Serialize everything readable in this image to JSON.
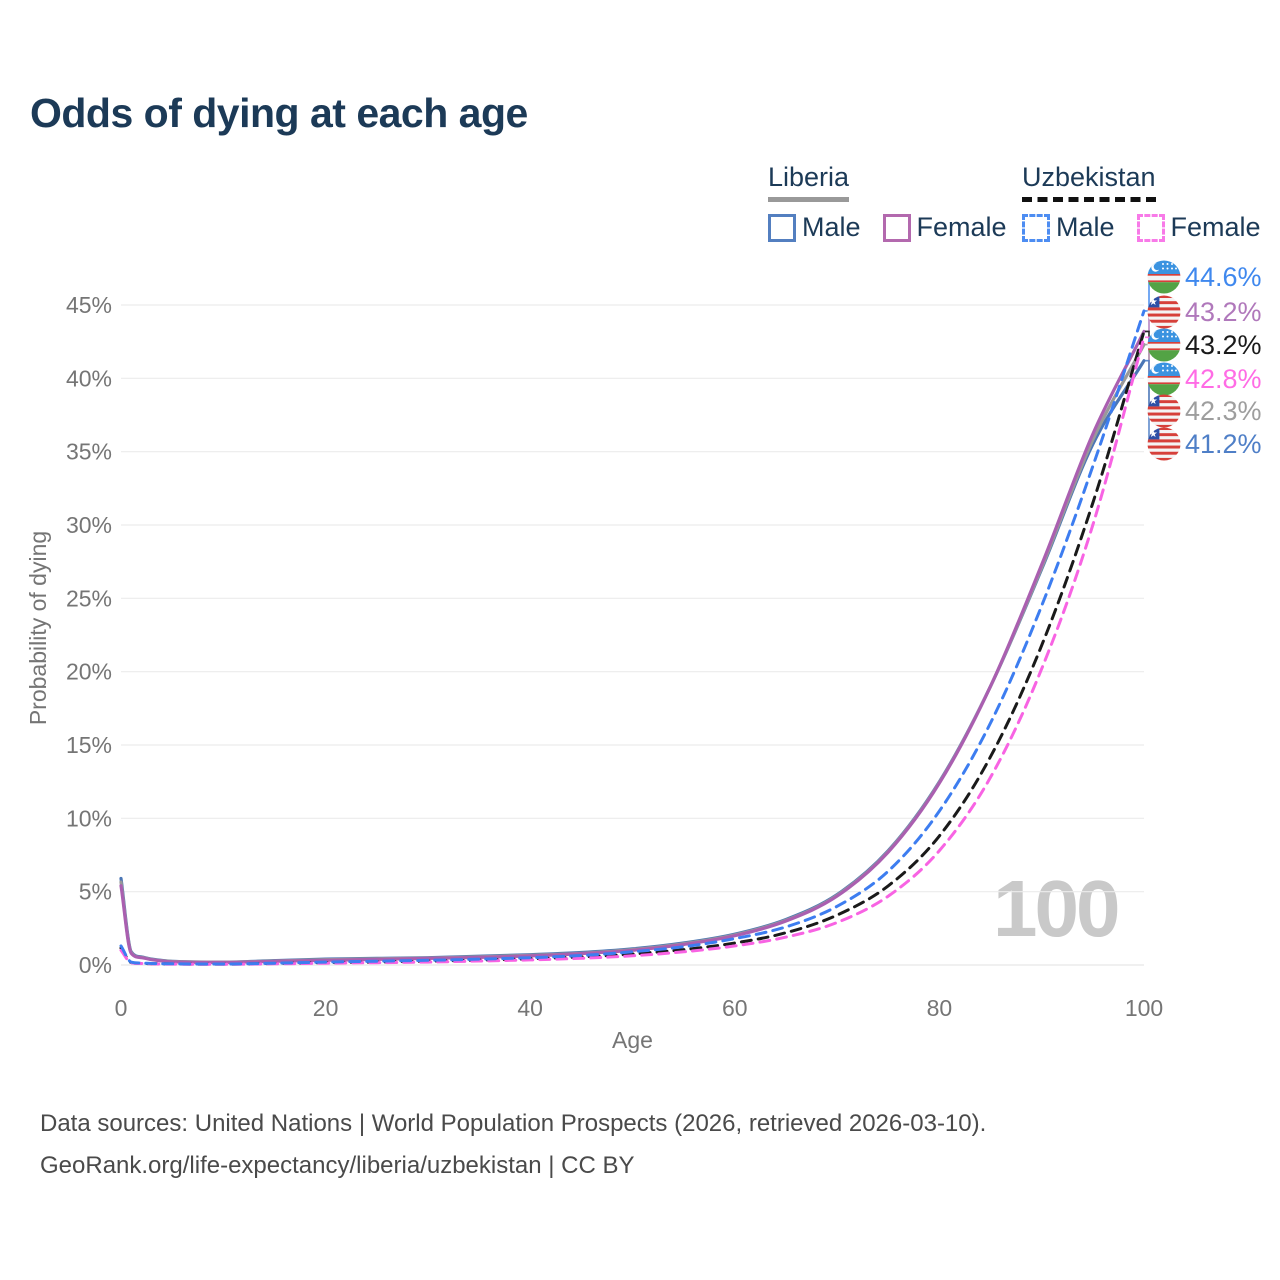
{
  "title": "Odds of dying at each age",
  "legend": {
    "groups": [
      {
        "country": "Liberia",
        "line_style": "solid",
        "underline_color": "#999999",
        "items": [
          {
            "label": "Male",
            "color": "#537fc0",
            "dashed": false
          },
          {
            "label": "Female",
            "color": "#b369ae",
            "dashed": false
          }
        ]
      },
      {
        "country": "Uzbekistan",
        "line_style": "dashed",
        "underline_color": "#111111",
        "items": [
          {
            "label": "Male",
            "color": "#4d8df2",
            "dashed": true
          },
          {
            "label": "Female",
            "color": "#f87ae8",
            "dashed": true
          }
        ]
      }
    ]
  },
  "chart_data": {
    "type": "line",
    "title": "Odds of dying at each age",
    "xlabel": "Age",
    "ylabel": "Probability of dying",
    "xlim": [
      0,
      100
    ],
    "ylim": [
      0,
      47
    ],
    "x_ticks": [
      0,
      20,
      40,
      60,
      80,
      100
    ],
    "y_ticks_percent": [
      0,
      5,
      10,
      15,
      20,
      25,
      30,
      35,
      40,
      45
    ],
    "grid": true,
    "legend_position": "top-right",
    "x": [
      0,
      1,
      2,
      3,
      5,
      10,
      15,
      20,
      25,
      30,
      35,
      40,
      45,
      50,
      55,
      60,
      65,
      70,
      75,
      80,
      85,
      90,
      95,
      100
    ],
    "series": [
      {
        "name": "Liberia Male",
        "country": "Liberia",
        "sex": "Male",
        "color": "#4b76b5",
        "dashed": false,
        "values": [
          5.9,
          0.9,
          0.55,
          0.4,
          0.25,
          0.2,
          0.3,
          0.4,
          0.45,
          0.5,
          0.6,
          0.7,
          0.85,
          1.1,
          1.5,
          2.1,
          3.1,
          4.8,
          7.8,
          12.5,
          19.0,
          27.0,
          35.5,
          41.2
        ],
        "end_value": 41.2,
        "end_label": "41.2%"
      },
      {
        "name": "Liberia Female",
        "country": "Liberia",
        "sex": "Female",
        "color": "#aa5fb0",
        "dashed": false,
        "values": [
          5.4,
          0.8,
          0.5,
          0.36,
          0.22,
          0.18,
          0.25,
          0.32,
          0.38,
          0.45,
          0.52,
          0.62,
          0.78,
          1.0,
          1.4,
          2.0,
          3.0,
          4.7,
          7.7,
          12.4,
          19.0,
          27.3,
          36.2,
          43.2
        ],
        "end_value": 43.2,
        "end_label": "43.2%"
      },
      {
        "name": "Liberia Both sexes",
        "country": "Liberia",
        "sex": "Both",
        "color": "#999999",
        "dashed": false,
        "values": [
          5.65,
          0.85,
          0.52,
          0.38,
          0.24,
          0.19,
          0.27,
          0.36,
          0.42,
          0.47,
          0.56,
          0.66,
          0.8,
          1.05,
          1.45,
          2.05,
          3.05,
          4.75,
          7.75,
          12.45,
          19.0,
          27.1,
          35.8,
          42.3
        ],
        "end_value": 42.3,
        "end_label": "42.3%"
      },
      {
        "name": "Uzbekistan Male",
        "country": "Uzbekistan",
        "sex": "Male",
        "color": "#3d7df0",
        "dashed": true,
        "values": [
          1.3,
          0.2,
          0.13,
          0.1,
          0.08,
          0.07,
          0.12,
          0.2,
          0.26,
          0.32,
          0.4,
          0.5,
          0.65,
          0.9,
          1.25,
          1.8,
          2.6,
          4.0,
          6.4,
          10.5,
          16.5,
          24.5,
          34.0,
          44.6
        ],
        "end_value": 44.6,
        "end_label": "44.6%"
      },
      {
        "name": "Uzbekistan Female",
        "country": "Uzbekistan",
        "sex": "Female",
        "color": "#f863e3",
        "dashed": true,
        "values": [
          1.0,
          0.15,
          0.1,
          0.08,
          0.06,
          0.05,
          0.08,
          0.12,
          0.16,
          0.2,
          0.27,
          0.35,
          0.46,
          0.63,
          0.9,
          1.3,
          1.9,
          2.9,
          4.7,
          7.8,
          12.8,
          20.2,
          30.0,
          42.8
        ],
        "end_value": 42.8,
        "end_label": "42.8%"
      },
      {
        "name": "Uzbekistan Both sexes",
        "country": "Uzbekistan",
        "sex": "Both",
        "color": "#1a1a1a",
        "dashed": true,
        "values": [
          1.15,
          0.17,
          0.11,
          0.09,
          0.07,
          0.06,
          0.1,
          0.16,
          0.2,
          0.26,
          0.33,
          0.42,
          0.55,
          0.75,
          1.05,
          1.5,
          2.2,
          3.4,
          5.4,
          8.8,
          14.2,
          21.8,
          31.5,
          43.2
        ],
        "end_value": 43.2,
        "end_label": "43.2%"
      }
    ],
    "end_labels": [
      {
        "value": "44.6%",
        "numeric": 44.6,
        "flag": "uz",
        "color": "#3f88ee",
        "series": "Uzbekistan Male"
      },
      {
        "value": "43.2%",
        "numeric": 43.2,
        "flag": "lr",
        "color": "#b078bb",
        "series": "Liberia Female"
      },
      {
        "value": "43.2%",
        "numeric": 43.2,
        "flag": "uz",
        "color": "#1a1a1a",
        "series": "Uzbekistan Both sexes"
      },
      {
        "value": "42.8%",
        "numeric": 42.8,
        "flag": "uz",
        "color": "#ff6ce5",
        "series": "Uzbekistan Female"
      },
      {
        "value": "42.3%",
        "numeric": 42.3,
        "flag": "lr",
        "color": "#9e9e9e",
        "series": "Liberia Both sexes"
      },
      {
        "value": "41.2%",
        "numeric": 41.2,
        "flag": "lr",
        "color": "#4f7fc7",
        "series": "Liberia Male"
      }
    ]
  },
  "watermark": "100",
  "footer": {
    "line1": "Data sources: United Nations | World Population Prospects (2026, retrieved 2026-03-10).",
    "line2": "GeoRank.org/life-expectancy/liberia/uzbekistan | CC BY"
  },
  "colors": {
    "title_text": "#1c3a57",
    "axis_text": "#757575",
    "gridline": "#ececec",
    "watermark": "#c9c9c9",
    "footer_text": "#4a4a4a"
  }
}
